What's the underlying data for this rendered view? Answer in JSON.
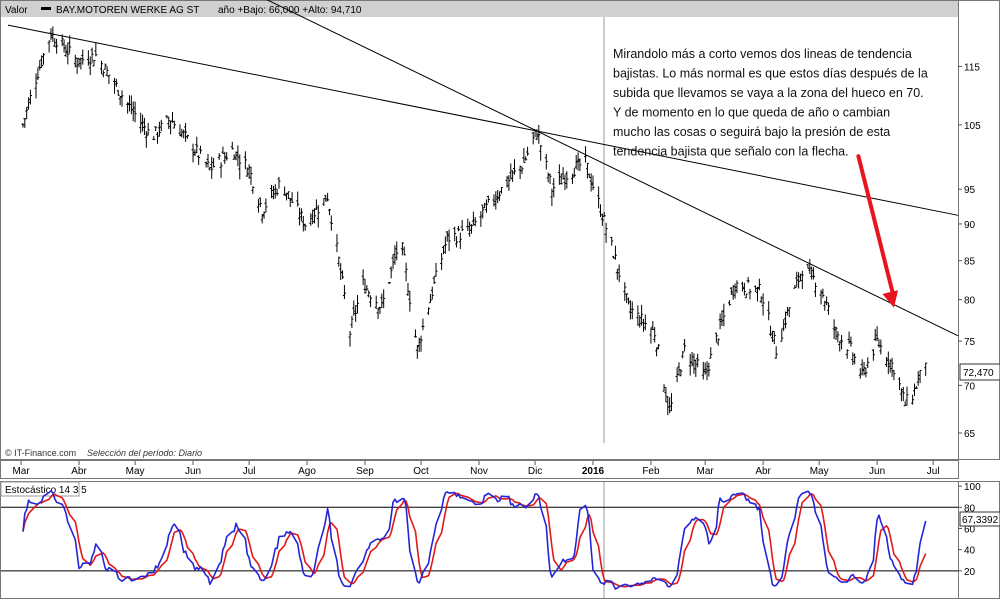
{
  "header": {
    "label": "Valor",
    "ticker": "BAY.MOTOREN WERKE AG ST",
    "range_text": "año +Bajo: 66,000 +Alto: 94,710"
  },
  "footer": {
    "source": "© IT-Finance.com",
    "period": "Selección del período: Diario"
  },
  "annotation": {
    "lines": [
      "Mirandolo más a corto vemos dos lineas de tendencia",
      "bajistas. Lo más normal es que estos días después de la",
      "subida que llevamos se vaya a la zona del hueco en 70.",
      "Y de momento en lo que queda de año o cambian",
      "mucho las cosas o seguirá bajo la presión de esta",
      "tendencia bajista que señalo con la flecha."
    ]
  },
  "colors": {
    "background": "#ffffff",
    "panel_border": "#777777",
    "header_bg": "#d0d0d0",
    "price_bar": "#000000",
    "trendline": "#000000",
    "arrow": "#e8141c",
    "stoch_k": "#2525d6",
    "stoch_d": "#e01a1a",
    "last_price_bg": "#ffffff"
  },
  "chart_data": [
    {
      "type": "ohlc",
      "title": "BAY.MOTOREN WERKE AG ST",
      "x_ticks": [
        "Mar",
        "Abr",
        "May",
        "Jun",
        "Jul",
        "Ago",
        "Sep",
        "Oct",
        "Nov",
        "Dic",
        "2016",
        "Feb",
        "Mar",
        "Abr",
        "May",
        "Jun",
        "Jul"
      ],
      "y_ticks": [
        65,
        70,
        75,
        80,
        85,
        90,
        95,
        105,
        115
      ],
      "y_scale": "log",
      "ylim": [
        64,
        124
      ],
      "last_price_label": "72,470",
      "anchors": [
        {
          "x": "2015-03-02",
          "close": 105
        },
        {
          "x": "2015-03-10",
          "close": 114
        },
        {
          "x": "2015-03-17",
          "close": 121
        },
        {
          "x": "2015-03-31",
          "close": 116
        },
        {
          "x": "2015-04-10",
          "close": 117
        },
        {
          "x": "2015-04-28",
          "close": 108
        },
        {
          "x": "2015-05-10",
          "close": 103
        },
        {
          "x": "2015-05-20",
          "close": 106
        },
        {
          "x": "2015-06-10",
          "close": 98
        },
        {
          "x": "2015-06-22",
          "close": 101
        },
        {
          "x": "2015-07-01",
          "close": 98
        },
        {
          "x": "2015-07-08",
          "close": 92
        },
        {
          "x": "2015-07-18",
          "close": 96
        },
        {
          "x": "2015-07-31",
          "close": 90
        },
        {
          "x": "2015-08-12",
          "close": 94
        },
        {
          "x": "2015-08-24",
          "close": 76
        },
        {
          "x": "2015-08-31",
          "close": 82
        },
        {
          "x": "2015-09-10",
          "close": 79
        },
        {
          "x": "2015-09-20",
          "close": 88
        },
        {
          "x": "2015-09-29",
          "close": 74
        },
        {
          "x": "2015-10-15",
          "close": 88
        },
        {
          "x": "2015-10-27",
          "close": 89
        },
        {
          "x": "2015-11-10",
          "close": 94
        },
        {
          "x": "2015-11-25",
          "close": 99
        },
        {
          "x": "2015-12-02",
          "close": 104
        },
        {
          "x": "2015-12-10",
          "close": 95
        },
        {
          "x": "2015-12-21",
          "close": 98
        },
        {
          "x": "2015-12-28",
          "close": 99
        },
        {
          "x": "2016-01-04",
          "close": 93
        },
        {
          "x": "2016-01-20",
          "close": 79
        },
        {
          "x": "2016-02-03",
          "close": 76
        },
        {
          "x": "2016-02-11",
          "close": 67
        },
        {
          "x": "2016-02-19",
          "close": 74
        },
        {
          "x": "2016-03-01",
          "close": 71
        },
        {
          "x": "2016-03-17",
          "close": 82
        },
        {
          "x": "2016-03-31",
          "close": 81
        },
        {
          "x": "2016-04-08",
          "close": 74
        },
        {
          "x": "2016-04-22",
          "close": 84
        },
        {
          "x": "2016-05-01",
          "close": 82
        },
        {
          "x": "2016-05-10",
          "close": 76
        },
        {
          "x": "2016-05-18",
          "close": 74
        },
        {
          "x": "2016-05-24",
          "close": 71
        },
        {
          "x": "2016-06-01",
          "close": 75
        },
        {
          "x": "2016-06-10",
          "close": 72
        },
        {
          "x": "2016-06-16",
          "close": 68
        },
        {
          "x": "2016-06-20",
          "close": 69
        },
        {
          "x": "2016-06-27",
          "close": 72.47
        }
      ],
      "trendlines": [
        {
          "from": {
            "x": "2015-03-17",
            "y": 121
          },
          "to": {
            "x": "2015-12-02",
            "y": 104
          },
          "extended": true
        },
        {
          "from": {
            "x": "2015-12-02",
            "y": 104
          },
          "to": {
            "x": "2016-05-01",
            "y": 84
          },
          "extended": true
        }
      ],
      "arrow": {
        "from": {
          "x": "2016-05-22",
          "y": 100
        },
        "to": {
          "x": "2016-06-10",
          "y": 79
        }
      }
    },
    {
      "type": "line",
      "title": "Estocástico 14 3 5",
      "y_ticks": [
        20,
        40,
        60,
        80,
        100
      ],
      "ylim": [
        0,
        102
      ],
      "reference_levels": [
        20,
        80
      ],
      "last_value_label": "67,3392",
      "series": [
        {
          "key": "k",
          "color_key": "stoch_k"
        },
        {
          "key": "d",
          "color_key": "stoch_d"
        }
      ]
    }
  ]
}
